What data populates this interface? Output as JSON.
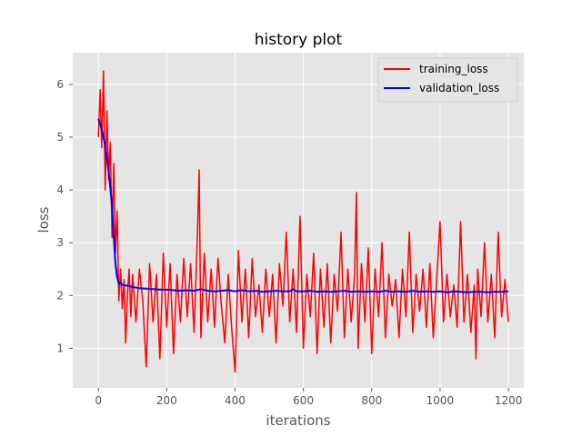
{
  "chart_data": {
    "type": "line",
    "title": "history plot",
    "xlabel": "iterations",
    "ylabel": "loss",
    "xlim": [
      -75,
      1245
    ],
    "ylim": [
      0.25,
      6.6
    ],
    "xticks": [
      0,
      200,
      400,
      600,
      800,
      1000,
      1200
    ],
    "yticks": [
      1,
      2,
      3,
      4,
      5,
      6
    ],
    "grid": true,
    "legend_position": "top-right",
    "series": [
      {
        "name": "training_loss",
        "color": "#ff0000",
        "x": [
          0,
          5,
          10,
          15,
          20,
          25,
          30,
          35,
          40,
          45,
          50,
          55,
          60,
          65,
          70,
          75,
          80,
          85,
          90,
          95,
          100,
          110,
          120,
          130,
          140,
          150,
          160,
          170,
          180,
          190,
          200,
          210,
          220,
          230,
          240,
          250,
          260,
          270,
          280,
          290,
          295,
          300,
          310,
          320,
          330,
          340,
          350,
          360,
          370,
          380,
          390,
          400,
          410,
          420,
          430,
          440,
          450,
          460,
          470,
          480,
          490,
          500,
          510,
          520,
          530,
          540,
          550,
          560,
          570,
          580,
          590,
          600,
          610,
          620,
          630,
          640,
          650,
          660,
          670,
          680,
          690,
          700,
          710,
          720,
          730,
          740,
          750,
          755,
          760,
          770,
          780,
          790,
          800,
          810,
          820,
          830,
          840,
          850,
          860,
          870,
          880,
          890,
          900,
          910,
          920,
          930,
          940,
          950,
          960,
          970,
          980,
          990,
          1000,
          1010,
          1020,
          1030,
          1040,
          1050,
          1060,
          1070,
          1080,
          1090,
          1100,
          1105,
          1110,
          1120,
          1130,
          1140,
          1150,
          1160,
          1170,
          1180,
          1190,
          1200
        ],
        "y": [
          5.0,
          5.9,
          4.8,
          6.25,
          4.0,
          5.5,
          4.2,
          4.9,
          3.1,
          4.5,
          2.8,
          3.6,
          1.9,
          2.5,
          1.75,
          2.3,
          1.1,
          2.0,
          2.5,
          1.6,
          2.4,
          1.5,
          2.5,
          1.9,
          0.65,
          2.6,
          1.5,
          2.4,
          0.8,
          2.8,
          1.4,
          2.6,
          0.9,
          2.4,
          1.5,
          2.7,
          1.6,
          2.6,
          1.3,
          3.2,
          4.38,
          1.2,
          2.8,
          1.5,
          2.5,
          1.4,
          2.7,
          1.8,
          1.1,
          2.4,
          1.4,
          0.55,
          2.85,
          1.5,
          2.5,
          1.2,
          2.7,
          1.6,
          2.2,
          1.3,
          2.5,
          1.6,
          2.4,
          1.1,
          2.6,
          1.8,
          3.2,
          1.5,
          2.5,
          1.3,
          3.5,
          1.0,
          2.4,
          1.6,
          2.8,
          0.9,
          2.5,
          1.4,
          2.6,
          1.1,
          2.4,
          1.7,
          3.2,
          1.2,
          2.5,
          1.5,
          2.4,
          3.95,
          1.0,
          2.6,
          1.5,
          2.9,
          0.9,
          2.5,
          1.6,
          3.0,
          1.2,
          2.4,
          1.8,
          2.3,
          1.2,
          2.5,
          1.6,
          3.2,
          1.3,
          2.4,
          1.7,
          2.5,
          1.4,
          2.6,
          1.2,
          2.3,
          3.4,
          1.5,
          2.4,
          1.6,
          2.2,
          1.4,
          3.4,
          1.5,
          2.4,
          1.3,
          2.2,
          0.8,
          2.5,
          1.6,
          3.0,
          1.5,
          2.4,
          1.2,
          3.2,
          1.6,
          2.3,
          1.5
        ]
      },
      {
        "name": "validation_loss",
        "color": "#0000ff",
        "x": [
          0,
          10,
          20,
          30,
          40,
          45,
          50,
          55,
          60,
          65,
          70,
          80,
          90,
          100,
          120,
          140,
          160,
          180,
          200,
          220,
          240,
          260,
          280,
          300,
          320,
          340,
          360,
          380,
          400,
          420,
          440,
          460,
          480,
          500,
          520,
          540,
          560,
          570,
          580,
          600,
          620,
          640,
          660,
          680,
          700,
          720,
          740,
          760,
          780,
          800,
          820,
          840,
          860,
          880,
          900,
          920,
          940,
          960,
          980,
          1000,
          1020,
          1040,
          1060,
          1080,
          1100,
          1120,
          1140,
          1160,
          1180,
          1200
        ],
        "y": [
          5.35,
          5.15,
          4.85,
          4.35,
          3.7,
          3.1,
          2.6,
          2.35,
          2.22,
          2.25,
          2.2,
          2.19,
          2.18,
          2.16,
          2.14,
          2.13,
          2.12,
          2.11,
          2.11,
          2.1,
          2.09,
          2.1,
          2.09,
          2.12,
          2.09,
          2.08,
          2.09,
          2.1,
          2.08,
          2.1,
          2.08,
          2.09,
          2.07,
          2.08,
          2.09,
          2.08,
          2.08,
          2.12,
          2.08,
          2.08,
          2.09,
          2.07,
          2.08,
          2.07,
          2.08,
          2.09,
          2.07,
          2.08,
          2.07,
          2.08,
          2.07,
          2.09,
          2.07,
          2.08,
          2.07,
          2.09,
          2.07,
          2.08,
          2.07,
          2.08,
          2.06,
          2.08,
          2.07,
          2.06,
          2.07,
          2.07,
          2.06,
          2.07,
          2.07,
          2.08
        ]
      }
    ]
  }
}
